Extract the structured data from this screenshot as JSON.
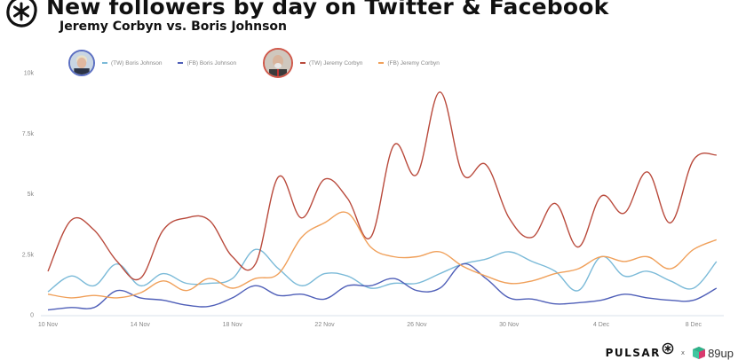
{
  "header": {
    "title": "New followers by day on Twitter & Facebook",
    "subtitle": "Jeremy Corbyn vs. Boris Johnson"
  },
  "legend": {
    "groups": [
      {
        "person": "Boris Johnson",
        "ring_color": "#5b6fc2",
        "items": [
          {
            "label": "(TW) Boris Johnson",
            "color": "#7bbad8"
          },
          {
            "label": "(FB) Boris Johnson",
            "color": "#4f5fb8"
          }
        ]
      },
      {
        "person": "Jeremy Corbyn",
        "ring_color": "#d0584a",
        "items": [
          {
            "label": "(TW) Jeremy Corbyn",
            "color": "#b94a3c"
          },
          {
            "label": "(FB) Jeremy Corbyn",
            "color": "#f0a05a"
          }
        ]
      }
    ]
  },
  "footer": {
    "brand1": "PULSAR",
    "times": "x",
    "brand2": "89up"
  },
  "chart_data": {
    "type": "line",
    "title": "New followers by day on Twitter & Facebook",
    "subtitle": "Jeremy Corbyn vs. Boris Johnson",
    "xlabel": "",
    "ylabel": "",
    "ylim": [
      0,
      10000
    ],
    "yticks": [
      0,
      2500,
      5000,
      7500,
      10000
    ],
    "ytick_labels": [
      "0",
      "2.5k",
      "5k",
      "7.5k",
      "10k"
    ],
    "xtick_labels": [
      "10 Nov",
      "14 Nov",
      "18 Nov",
      "22 Nov",
      "26 Nov",
      "30 Nov",
      "4 Dec",
      "8 Dec"
    ],
    "xtick_index": [
      0,
      4,
      8,
      12,
      16,
      20,
      24,
      28
    ],
    "grid": false,
    "legend_position": "top-left",
    "x": [
      "10 Nov",
      "11 Nov",
      "12 Nov",
      "13 Nov",
      "14 Nov",
      "15 Nov",
      "16 Nov",
      "17 Nov",
      "18 Nov",
      "19 Nov",
      "20 Nov",
      "21 Nov",
      "22 Nov",
      "23 Nov",
      "24 Nov",
      "25 Nov",
      "26 Nov",
      "27 Nov",
      "28 Nov",
      "29 Nov",
      "30 Nov",
      "1 Dec",
      "2 Dec",
      "3 Dec",
      "4 Dec",
      "5 Dec",
      "6 Dec",
      "7 Dec",
      "8 Dec",
      "9 Dec"
    ],
    "series": [
      {
        "name": "(TW) Boris Johnson",
        "color": "#7bbad8",
        "values": [
          950,
          1600,
          1200,
          2100,
          1200,
          1700,
          1300,
          1300,
          1500,
          2700,
          1900,
          1200,
          1700,
          1600,
          1100,
          1300,
          1300,
          1700,
          2100,
          2300,
          2600,
          2200,
          1800,
          1000,
          2400,
          1600,
          1800,
          1400,
          1100,
          2200
        ]
      },
      {
        "name": "(FB) Boris Johnson",
        "color": "#4f5fb8",
        "values": [
          200,
          300,
          300,
          1000,
          700,
          600,
          400,
          350,
          700,
          1200,
          800,
          850,
          650,
          1200,
          1200,
          1500,
          1000,
          1100,
          2100,
          1500,
          700,
          650,
          450,
          500,
          600,
          850,
          700,
          600,
          600,
          1100
        ]
      },
      {
        "name": "(TW) Jeremy Corbyn",
        "color": "#b94a3c",
        "values": [
          1800,
          3900,
          3500,
          2200,
          1500,
          3500,
          4000,
          3900,
          2400,
          2100,
          5700,
          4000,
          5600,
          4800,
          3200,
          7000,
          5800,
          9200,
          5800,
          6200,
          4000,
          3200,
          4600,
          2800,
          4900,
          4200,
          5900,
          3800,
          6400,
          6600
        ]
      },
      {
        "name": "(FB) Jeremy Corbyn",
        "color": "#f0a05a",
        "values": [
          850,
          700,
          800,
          700,
          900,
          1400,
          1000,
          1500,
          1100,
          1500,
          1700,
          3200,
          3800,
          4200,
          2800,
          2400,
          2400,
          2600,
          2000,
          1600,
          1300,
          1400,
          1700,
          1900,
          2400,
          2200,
          2400,
          1900,
          2700,
          3100
        ]
      }
    ]
  }
}
